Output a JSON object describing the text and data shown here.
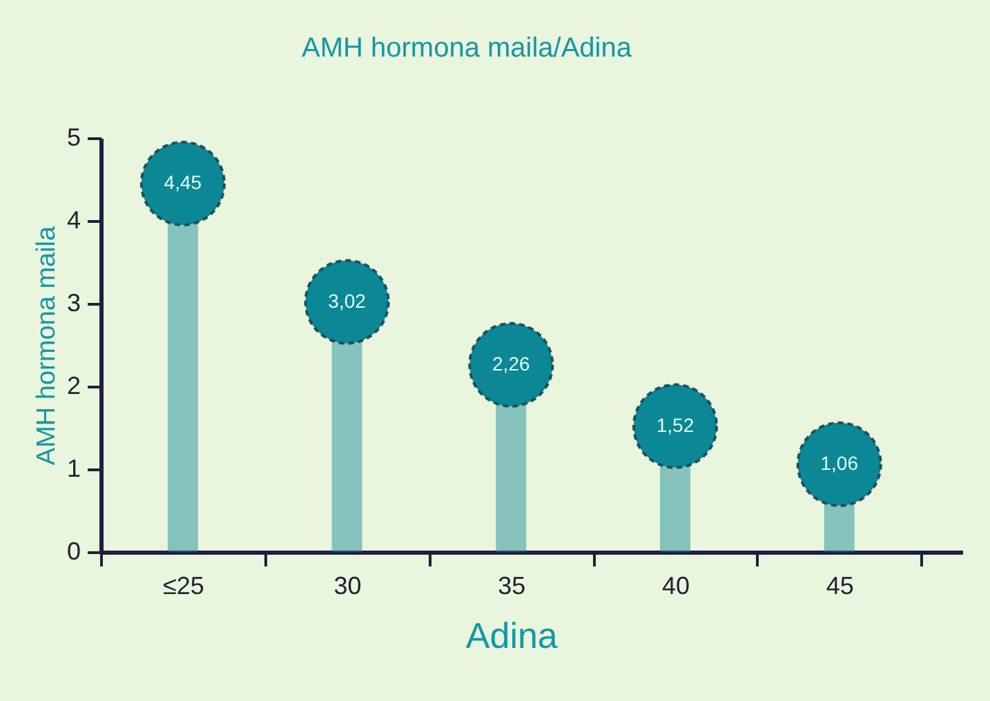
{
  "chart_data": {
    "type": "lollipop",
    "title": "AMH hormona maila/Adina",
    "xlabel": "Adina",
    "ylabel": "AMH hormona maila",
    "categories": [
      "≤25",
      "30",
      "35",
      "40",
      "45"
    ],
    "values": [
      4.45,
      3.02,
      2.26,
      1.52,
      1.06
    ],
    "value_labels": [
      "4,45",
      "3,02",
      "2,26",
      "1,52",
      "1,06"
    ],
    "color": "#0b8795",
    "ylim": [
      0,
      5
    ],
    "yticks": [
      0,
      1,
      2,
      3,
      4,
      5
    ],
    "grid": false,
    "marker": "circle"
  }
}
